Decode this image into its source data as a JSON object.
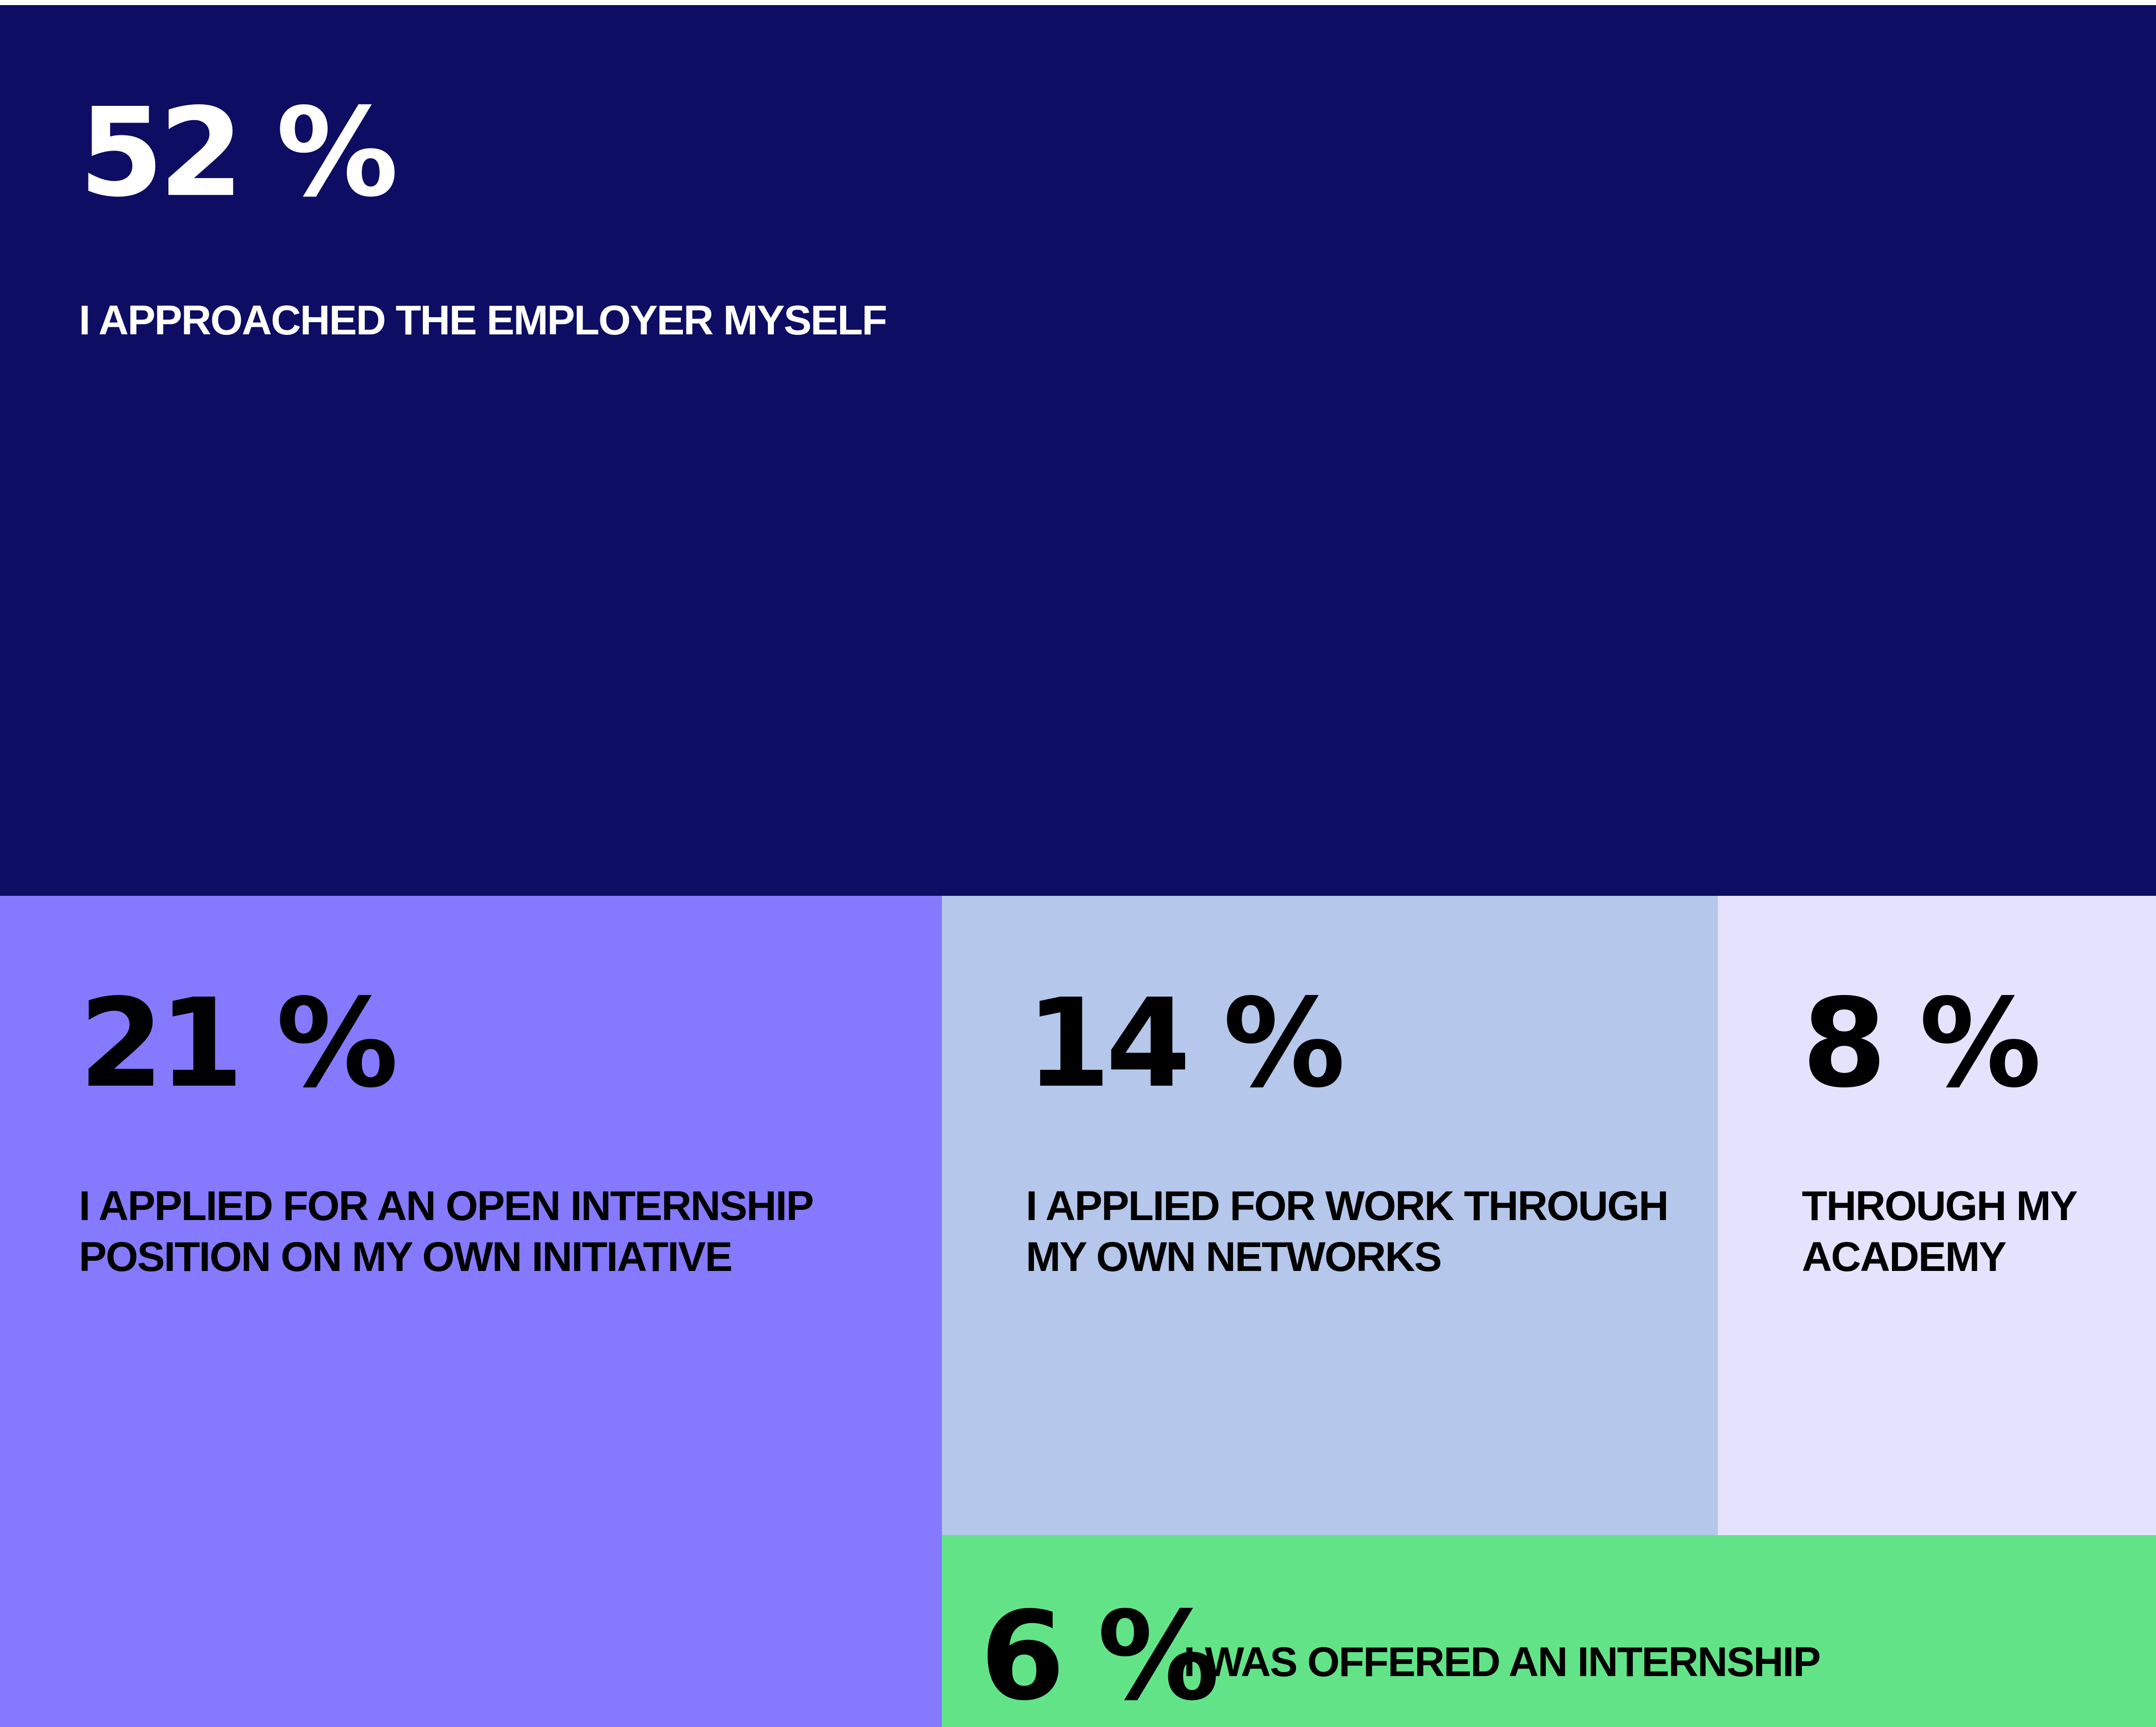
{
  "chart_data": {
    "type": "treemap",
    "title": "",
    "tiles": [
      {
        "value": 52,
        "value_label": "52 %",
        "label": "I APPROACHED THE EMPLOYER MYSELF",
        "color": "#0d0d63",
        "text_color": "#ffffff"
      },
      {
        "value": 21,
        "value_label": "21 %",
        "label": "I APPLIED FOR AN OPEN INTERNSHIP POSITION ON MY OWN INITIATIVE",
        "color": "#8579fd",
        "text_color": "#000000"
      },
      {
        "value": 14,
        "value_label": "14 %",
        "label": "I APPLIED FOR WORK THROUGH MY OWN NETWORKS",
        "color": "#b5c7ea",
        "text_color": "#000000"
      },
      {
        "value": 8,
        "value_label": "8 %",
        "label": "THROUGH MY ACADEMY",
        "color": "#e5e2fd",
        "text_color": "#000000"
      },
      {
        "value": 6,
        "value_label": "6 %",
        "label": "I WAS OFFERED AN INTERNSHIP",
        "color": "#63e388",
        "text_color": "#000000"
      }
    ]
  }
}
